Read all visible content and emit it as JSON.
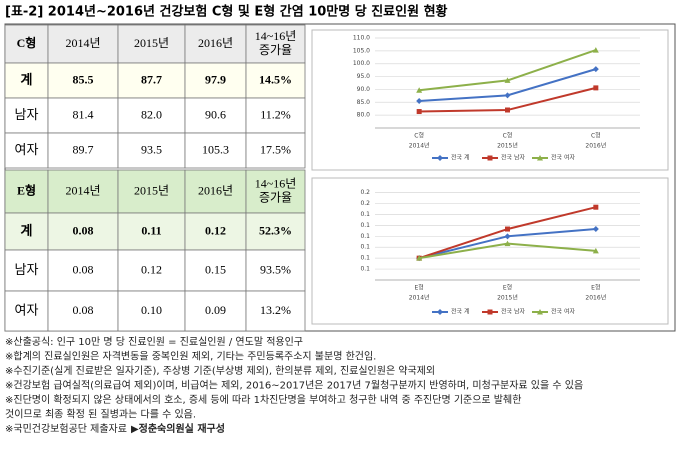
{
  "title": "[표-2] 2014년~2016년 건강보험 C형 및 E형 간염 10만명 당 진료인원 현황",
  "tables": [
    {
      "header": [
        "C형",
        "2014년",
        "2015년",
        "2016년",
        [
          "14~16년",
          "증가율"
        ]
      ],
      "rows": [
        [
          "계",
          "85.5",
          "87.7",
          "97.9",
          "14.5%"
        ],
        [
          "남자",
          "81.4",
          "82.0",
          "90.6",
          "11.2%"
        ],
        [
          "여자",
          "89.7",
          "93.5",
          "105.3",
          "17.5%"
        ]
      ]
    },
    {
      "header": [
        "E형",
        "2014년",
        "2015년",
        "2016년",
        [
          "14~16년",
          "증가율"
        ]
      ],
      "rows": [
        [
          "계",
          "0.08",
          "0.11",
          "0.12",
          "52.3%"
        ],
        [
          "남자",
          "0.08",
          "0.12",
          "0.15",
          "93.5%"
        ],
        [
          "여자",
          "0.08",
          "0.10",
          "0.09",
          "13.2%"
        ]
      ]
    }
  ],
  "chart_data": [
    {
      "type": "line",
      "categories": [
        "C형",
        "C형",
        "C형"
      ],
      "subcategories": [
        "2014년",
        "2015년",
        "2016년"
      ],
      "ylim": [
        75,
        110
      ],
      "yticks": [
        {
          "value": 80,
          "label": "80.0"
        },
        {
          "value": 85,
          "label": "85.0"
        },
        {
          "value": 90,
          "label": "90.0"
        },
        {
          "value": 95,
          "label": "95.0"
        },
        {
          "value": 100,
          "label": "100.0"
        },
        {
          "value": 105,
          "label": "105.0"
        },
        {
          "value": 110,
          "label": "110.0"
        }
      ],
      "grid": true,
      "series": [
        {
          "name": "전국 계",
          "color": "#4472c4",
          "values": [
            85.5,
            87.7,
            97.9
          ]
        },
        {
          "name": "전국 남자",
          "color": "#c0392b",
          "values": [
            81.4,
            82.0,
            90.6
          ]
        },
        {
          "name": "전국 여자",
          "color": "#8db04a",
          "values": [
            89.7,
            93.5,
            105.3
          ]
        }
      ]
    },
    {
      "type": "line",
      "categories": [
        "E형",
        "E형",
        "E형"
      ],
      "subcategories": [
        "2014년",
        "2015년",
        "2016년"
      ],
      "ylim": [
        0.05,
        0.175
      ],
      "yticks": [
        {
          "value": 0.065,
          "label": "0.1"
        },
        {
          "value": 0.08,
          "label": "0.1"
        },
        {
          "value": 0.095,
          "label": "0.1"
        },
        {
          "value": 0.11,
          "label": "0.1"
        },
        {
          "value": 0.125,
          "label": "0.1"
        },
        {
          "value": 0.14,
          "label": "0.1"
        },
        {
          "value": 0.155,
          "label": "0.2"
        },
        {
          "value": 0.17,
          "label": "0.2"
        }
      ],
      "grid": true,
      "series": [
        {
          "name": "전국 계",
          "color": "#4472c4",
          "values": [
            0.08,
            0.11,
            0.12
          ]
        },
        {
          "name": "전국 남자",
          "color": "#c0392b",
          "values": [
            0.08,
            0.12,
            0.15
          ]
        },
        {
          "name": "전국 여자",
          "color": "#8db04a",
          "values": [
            0.08,
            0.1,
            0.09
          ]
        }
      ]
    }
  ],
  "notes": [
    "※산출공식: 인구 10만 명 당 진료인원 = 진료실인원 / 연도말 적용인구",
    "※합계의 진료실인원은 자격변동을 중복인원 제외, 기타는 주민등록주소지 불분명 한건임.",
    "※수진기준(실게 진료받은 일자기준), 주상병 기준(부상병 제외), 한의분류 제외, 진료실인원은 약국제외",
    "※건강보험 급여실적(의료급여 제외)이며, 비급여는 제외, 2016~2017년은 2017년 7월청구분까지 반영하며, 미청구분자료 있을 수 있음",
    "※진단명이 확정되지 않은 상태에서의 호소, 증세 등에 따라 1차진단명을 부여하고 청구한 내역 중 주진단명 기준으로 발췌한",
    "  것이므로 최종 확정 된 질병과는 다를 수 있음."
  ],
  "source": "※국민건강보험공단 제출자료",
  "credit": "▶정춘숙의원실 재구성"
}
